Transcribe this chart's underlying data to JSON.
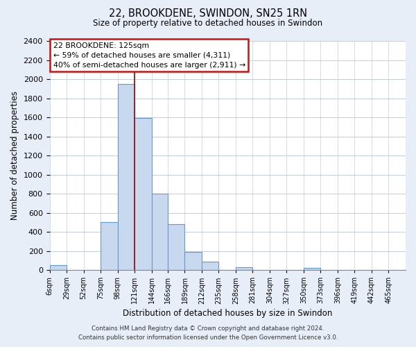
{
  "title": "22, BROOKDENE, SWINDON, SN25 1RN",
  "subtitle": "Size of property relative to detached houses in Swindon",
  "xlabel": "Distribution of detached houses by size in Swindon",
  "ylabel": "Number of detached properties",
  "bar_color": "#c8d8ee",
  "bar_edge_color": "#6699cc",
  "vline_x": 121,
  "vline_color": "#aa0000",
  "bin_edges": [
    6,
    29,
    52,
    75,
    98,
    121,
    144,
    166,
    189,
    212,
    235,
    258,
    281,
    304,
    327,
    350,
    373,
    396,
    419,
    442,
    465,
    488
  ],
  "categories": [
    "6sqm",
    "29sqm",
    "52sqm",
    "75sqm",
    "98sqm",
    "121sqm",
    "144sqm",
    "166sqm",
    "189sqm",
    "212sqm",
    "235sqm",
    "258sqm",
    "281sqm",
    "304sqm",
    "327sqm",
    "350sqm",
    "373sqm",
    "396sqm",
    "419sqm",
    "442sqm",
    "465sqm"
  ],
  "values": [
    50,
    0,
    0,
    500,
    1950,
    1590,
    800,
    480,
    190,
    90,
    0,
    30,
    0,
    0,
    0,
    20,
    0,
    0,
    0,
    0,
    0
  ],
  "ylim": [
    0,
    2400
  ],
  "yticks": [
    0,
    200,
    400,
    600,
    800,
    1000,
    1200,
    1400,
    1600,
    1800,
    2000,
    2200,
    2400
  ],
  "annotation_line1": "22 BROOKDENE: 125sqm",
  "annotation_line2": "← 59% of detached houses are smaller (4,311)",
  "annotation_line3": "40% of semi-detached houses are larger (2,911) →",
  "footer_line1": "Contains HM Land Registry data © Crown copyright and database right 2024.",
  "footer_line2": "Contains public sector information licensed under the Open Government Licence v3.0.",
  "bg_color": "#e8eef8",
  "plot_bg_color": "#ffffff",
  "grid_color": "#c0cce0"
}
